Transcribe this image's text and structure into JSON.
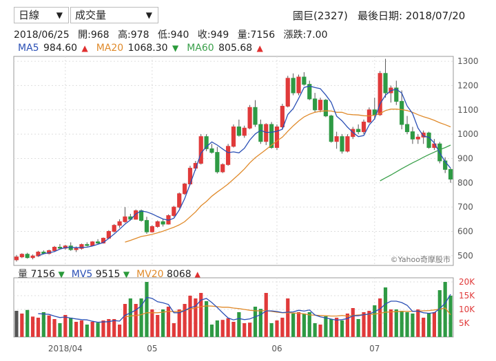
{
  "controls": {
    "period": "日線",
    "indicator": "成交量"
  },
  "header": {
    "stock": "國巨(2327)",
    "last_date_label": "最後日期: 2018/07/20"
  },
  "quote": {
    "date": "2018/06/25",
    "open": "開:968",
    "high": "高:978",
    "low": "低:940",
    "close": "收:949",
    "volume": "量:7156",
    "change": "漲跌:7.00"
  },
  "ma_legend": [
    {
      "label": "MA5",
      "value": "984.60",
      "arrow": "▲",
      "color": "#2a4fb5",
      "arrow_color": "#e03030"
    },
    {
      "label": "MA20",
      "value": "1068.30",
      "arrow": "▼",
      "color": "#e08a2a",
      "arrow_color": "#2a9a3a"
    },
    {
      "label": "MA60",
      "value": "805.68",
      "arrow": "▲",
      "color": "#3aa04a",
      "arrow_color": "#e03030"
    }
  ],
  "vol_legend": [
    {
      "label": "量",
      "value": "7156",
      "arrow": "▼",
      "color": "#333",
      "arrow_color": "#2a9a3a"
    },
    {
      "label": "MV5",
      "value": "9515",
      "arrow": "▼",
      "color": "#2a4fb5",
      "arrow_color": "#2a9a3a"
    },
    {
      "label": "MV20",
      "value": "8068",
      "arrow": "▲",
      "color": "#e08a2a",
      "arrow_color": "#e03030"
    }
  ],
  "watermark": "©Yahoo奇摩股市",
  "colors": {
    "up": "#e03a3a",
    "down": "#2e9a44",
    "ma5": "#2a4fb5",
    "ma20": "#e08a2a",
    "ma60": "#3aa04a",
    "grid": "#ddd"
  },
  "chart_data": [
    {
      "type": "candlestick",
      "title": "",
      "y_ticks": [
        "1300",
        "1200",
        "1100",
        "1000",
        "900",
        "800",
        "700",
        "600",
        "500"
      ],
      "ylim": [
        460,
        1320
      ],
      "x_tick_labels": [
        "2018/04",
        "05",
        "06",
        "07"
      ],
      "x_tick_index": [
        9,
        25,
        48,
        66
      ],
      "candles": [
        [
          483,
          503,
          476,
          495
        ],
        [
          495,
          510,
          490,
          506
        ],
        [
          506,
          512,
          488,
          492
        ],
        [
          492,
          505,
          485,
          499
        ],
        [
          499,
          520,
          495,
          515
        ],
        [
          515,
          522,
          505,
          509
        ],
        [
          509,
          525,
          505,
          521
        ],
        [
          521,
          540,
          518,
          535
        ],
        [
          535,
          548,
          527,
          531
        ],
        [
          531,
          545,
          525,
          540
        ],
        [
          540,
          555,
          520,
          525
        ],
        [
          525,
          538,
          515,
          530
        ],
        [
          530,
          550,
          525,
          546
        ],
        [
          546,
          555,
          538,
          542
        ],
        [
          542,
          560,
          540,
          557
        ],
        [
          557,
          568,
          548,
          552
        ],
        [
          552,
          575,
          550,
          572
        ],
        [
          572,
          605,
          570,
          600
        ],
        [
          600,
          630,
          595,
          625
        ],
        [
          625,
          650,
          615,
          640
        ],
        [
          640,
          700,
          635,
          660
        ],
        [
          660,
          672,
          645,
          650
        ],
        [
          650,
          690,
          648,
          685
        ],
        [
          685,
          690,
          640,
          645
        ],
        [
          645,
          660,
          590,
          598
        ],
        [
          598,
          625,
          595,
          620
        ],
        [
          620,
          645,
          615,
          640
        ],
        [
          640,
          652,
          620,
          630
        ],
        [
          630,
          670,
          628,
          665
        ],
        [
          665,
          705,
          660,
          700
        ],
        [
          700,
          760,
          695,
          755
        ],
        [
          755,
          800,
          750,
          795
        ],
        [
          795,
          870,
          790,
          860
        ],
        [
          860,
          890,
          850,
          880
        ],
        [
          880,
          1000,
          875,
          990
        ],
        [
          990,
          1000,
          930,
          940
        ],
        [
          940,
          960,
          920,
          925
        ],
        [
          925,
          948,
          838,
          845
        ],
        [
          845,
          880,
          840,
          875
        ],
        [
          875,
          960,
          870,
          950
        ],
        [
          950,
          1040,
          945,
          1030
        ],
        [
          1030,
          1060,
          990,
          995
        ],
        [
          995,
          1035,
          985,
          1025
        ],
        [
          1025,
          1120,
          1020,
          1110
        ],
        [
          1110,
          1140,
          1030,
          1040
        ],
        [
          1040,
          1060,
          960,
          970
        ],
        [
          970,
          1045,
          955,
          1040
        ],
        [
          1040,
          1050,
          940,
          945
        ],
        [
          945,
          1040,
          935,
          1030
        ],
        [
          1030,
          1125,
          1022,
          1115
        ],
        [
          1115,
          1240,
          1110,
          1230
        ],
        [
          1230,
          1250,
          1160,
          1170
        ],
        [
          1170,
          1245,
          1160,
          1235
        ],
        [
          1235,
          1255,
          1200,
          1205
        ],
        [
          1205,
          1220,
          1140,
          1145
        ],
        [
          1145,
          1170,
          1090,
          1100
        ],
        [
          1100,
          1150,
          1090,
          1140
        ],
        [
          1140,
          1145,
          1070,
          1075
        ],
        [
          1075,
          1080,
          965,
          970
        ],
        [
          970,
          1010,
          940,
          990
        ],
        [
          990,
          1000,
          920,
          930
        ],
        [
          930,
          1000,
          925,
          990
        ],
        [
          990,
          1030,
          980,
          1020
        ],
        [
          1020,
          1040,
          1000,
          1010
        ],
        [
          1010,
          1060,
          1000,
          1050
        ],
        [
          1050,
          1110,
          1045,
          1100
        ],
        [
          1100,
          1150,
          1060,
          1080
        ],
        [
          1080,
          1260,
          1075,
          1250
        ],
        [
          1250,
          1310,
          1150,
          1170
        ],
        [
          1170,
          1200,
          1130,
          1190
        ],
        [
          1190,
          1220,
          1120,
          1135
        ],
        [
          1135,
          1180,
          1020,
          1040
        ],
        [
          1040,
          1075,
          1000,
          1010
        ],
        [
          1010,
          1030,
          960,
          980
        ],
        [
          980,
          1000,
          960,
          988
        ],
        [
          988,
          1015,
          960,
          1005
        ],
        [
          1005,
          1010,
          940,
          945
        ],
        [
          945,
          980,
          935,
          960
        ],
        [
          960,
          968,
          880,
          890
        ],
        [
          890,
          905,
          840,
          855
        ],
        [
          855,
          860,
          800,
          815
        ]
      ],
      "ma5": [
        null,
        null,
        null,
        null,
        499,
        508,
        512,
        517,
        527,
        533,
        535,
        533,
        534,
        535,
        540,
        547,
        554,
        571,
        589,
        609,
        630,
        647,
        672,
        684,
        680,
        672,
        661,
        651,
        646,
        654,
        688,
        735,
        795,
        857,
        922,
        948,
        968,
        955,
        939,
        924,
        927,
        923,
        942,
        976,
        1001,
        1016,
        1007,
        1008,
        1012,
        1020,
        1081,
        1105,
        1147,
        1192,
        1198,
        1192,
        1187,
        1161,
        1131,
        1074,
        1055,
        1029,
        1007,
        990,
        994,
        1038,
        1063,
        1125,
        1160,
        1179,
        1185,
        1169,
        1116,
        1085,
        1025,
        992,
        987,
        964,
        923,
        887,
        860
      ],
      "ma20": [
        null,
        null,
        null,
        null,
        null,
        null,
        null,
        null,
        null,
        null,
        null,
        null,
        null,
        null,
        null,
        null,
        null,
        null,
        null,
        null,
        556,
        563,
        571,
        579,
        583,
        588,
        594,
        601,
        609,
        617,
        627,
        640,
        660,
        680,
        705,
        723,
        745,
        762,
        778,
        795,
        815,
        835,
        857,
        882,
        903,
        920,
        937,
        955,
        972,
        988,
        1012,
        1034,
        1054,
        1071,
        1082,
        1090,
        1094,
        1096,
        1095,
        1090,
        1090,
        1082,
        1080,
        1079,
        1076,
        1075,
        1078,
        1085,
        1097,
        1103,
        1103,
        1101,
        1097,
        1090,
        1080,
        1072,
        1065,
        1057,
        1047,
        1039,
        1030
      ],
      "ma60": [
        null,
        null,
        null,
        null,
        null,
        null,
        null,
        null,
        null,
        null,
        null,
        null,
        null,
        null,
        null,
        null,
        null,
        null,
        null,
        null,
        null,
        null,
        null,
        null,
        null,
        null,
        null,
        null,
        null,
        null,
        null,
        null,
        null,
        null,
        null,
        null,
        null,
        null,
        null,
        null,
        null,
        null,
        null,
        null,
        null,
        null,
        null,
        null,
        null,
        null,
        null,
        null,
        null,
        null,
        null,
        null,
        null,
        null,
        null,
        null,
        null,
        null,
        null,
        null,
        null,
        null,
        null,
        808,
        820,
        832,
        845,
        858,
        870,
        882,
        893,
        905,
        916,
        926,
        936,
        945,
        955
      ]
    },
    {
      "type": "bar",
      "title": "",
      "y_ticks": [
        "20K",
        "15K",
        "10K",
        "5K"
      ],
      "ylim": [
        0,
        21500
      ],
      "volume": [
        9500,
        8500,
        9800,
        7400,
        7000,
        9000,
        7800,
        6500,
        5000,
        8000,
        7000,
        5500,
        6000,
        4500,
        5500,
        5200,
        6000,
        6500,
        6500,
        4500,
        12000,
        14000,
        12000,
        14000,
        20000,
        10000,
        8000,
        10000,
        11000,
        5000,
        10000,
        12000,
        15000,
        14000,
        16000,
        13000,
        4500,
        6000,
        6200,
        6800,
        5500,
        9000,
        5000,
        5200,
        11000,
        10200,
        16000,
        5000,
        6000,
        7000,
        14000,
        8500,
        9000,
        8500,
        9000,
        5000,
        4500,
        7500,
        6500,
        7000,
        6000,
        8500,
        10500,
        6500,
        9000,
        9500,
        11500,
        14000,
        18000,
        10000,
        10000,
        9500,
        9000,
        8500,
        10000,
        7000,
        8500,
        9000,
        17000,
        20000,
        15000
      ],
      "mv5": [
        null,
        null,
        null,
        null,
        8440,
        8340,
        8200,
        7540,
        7060,
        7260,
        6860,
        6560,
        6300,
        6200,
        5700,
        5340,
        5440,
        5540,
        5940,
        5740,
        7900,
        8700,
        9800,
        11300,
        14400,
        14000,
        12800,
        12400,
        11800,
        8800,
        8800,
        9600,
        10600,
        11200,
        13400,
        14000,
        12500,
        10700,
        8740,
        6900,
        6200,
        6700,
        6300,
        6540,
        7340,
        8080,
        9480,
        9480,
        9240,
        8840,
        9000,
        9100,
        9700,
        9400,
        9800,
        8000,
        7300,
        6900,
        6500,
        6100,
        6300,
        6700,
        7700,
        7700,
        8100,
        8300,
        9200,
        10200,
        12000,
        13000,
        13000,
        12500,
        11500,
        9300,
        9400,
        8800,
        8600,
        8800,
        10300,
        12300,
        15500
      ],
      "mv20": [
        null,
        null,
        null,
        null,
        null,
        null,
        null,
        null,
        null,
        null,
        null,
        null,
        null,
        null,
        null,
        null,
        null,
        null,
        null,
        null,
        7300,
        7600,
        7800,
        8100,
        8800,
        8800,
        8800,
        9000,
        9300,
        9200,
        9300,
        9700,
        10100,
        10600,
        11000,
        11300,
        11200,
        11000,
        10800,
        10800,
        10500,
        10300,
        10000,
        9700,
        9500,
        9500,
        9600,
        9300,
        9000,
        8800,
        8800,
        8700,
        8600,
        8400,
        8000,
        7900,
        7800,
        7700,
        7600,
        7600,
        7800,
        7600,
        7800,
        8000,
        8100,
        8200,
        8300,
        8600,
        9000,
        9100,
        9200,
        9300,
        9300,
        9300,
        9400,
        9500,
        9600,
        9800,
        10100,
        10500,
        8068
      ]
    }
  ]
}
